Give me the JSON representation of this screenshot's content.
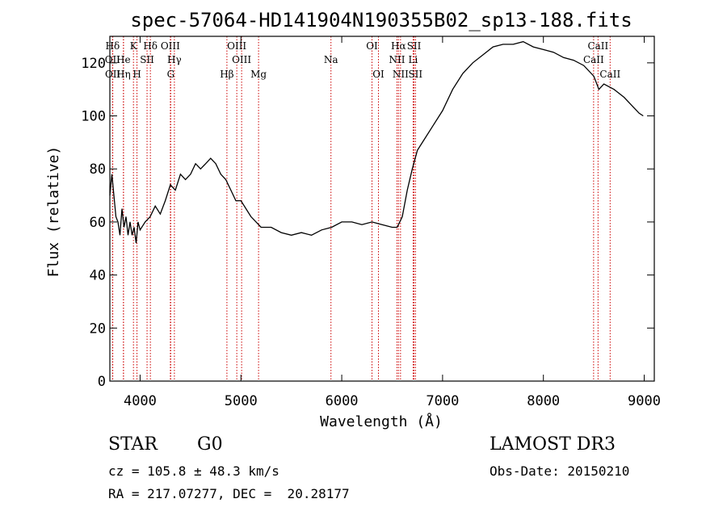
{
  "chart_data": {
    "type": "line",
    "title": "spec-57064-HD141904N190355B02_sp13-188.fits",
    "xlabel": "Wavelength (Å)",
    "ylabel": "Flux (relative)",
    "xlim": [
      3700,
      9100
    ],
    "ylim": [
      0,
      130
    ],
    "xticks": [
      4000,
      5000,
      6000,
      7000,
      8000,
      9000
    ],
    "yticks": [
      0,
      20,
      40,
      60,
      80,
      100,
      120
    ],
    "series": [
      {
        "name": "flux",
        "x": [
          3700,
          3720,
          3740,
          3760,
          3780,
          3800,
          3820,
          3840,
          3860,
          3880,
          3900,
          3920,
          3940,
          3960,
          3980,
          4000,
          4050,
          4100,
          4150,
          4200,
          4250,
          4300,
          4350,
          4400,
          4450,
          4500,
          4550,
          4600,
          4650,
          4700,
          4750,
          4800,
          4850,
          4900,
          4950,
          5000,
          5050,
          5100,
          5150,
          5200,
          5300,
          5400,
          5500,
          5600,
          5700,
          5800,
          5900,
          6000,
          6100,
          6200,
          6300,
          6400,
          6500,
          6550,
          6600,
          6650,
          6700,
          6750,
          6800,
          6900,
          7000,
          7100,
          7200,
          7300,
          7400,
          7500,
          7600,
          7700,
          7800,
          7900,
          8000,
          8100,
          8200,
          8300,
          8400,
          8500,
          8550,
          8600,
          8700,
          8800,
          8900,
          8950,
          8990
        ],
        "y": [
          70,
          78,
          70,
          62,
          60,
          55,
          65,
          58,
          62,
          55,
          60,
          55,
          58,
          52,
          60,
          57,
          60,
          62,
          66,
          63,
          68,
          74,
          72,
          78,
          76,
          78,
          82,
          80,
          82,
          84,
          82,
          78,
          76,
          72,
          68,
          68,
          65,
          62,
          60,
          58,
          58,
          56,
          55,
          56,
          55,
          57,
          58,
          60,
          60,
          59,
          60,
          59,
          58,
          58,
          62,
          72,
          80,
          87,
          90,
          96,
          102,
          110,
          116,
          120,
          123,
          126,
          127,
          127,
          128,
          126,
          125,
          124,
          122,
          121,
          119,
          115,
          110,
          112,
          110,
          107,
          103,
          101,
          100
        ]
      }
    ],
    "line_markers": [
      {
        "label": "Hδ",
        "x": 3727,
        "row": 1
      },
      {
        "label": "OII",
        "x": 3727,
        "row": 2
      },
      {
        "label": "OII",
        "x": 3729,
        "row": 3
      },
      {
        "label": "He",
        "x": 3835,
        "row": 2
      },
      {
        "label": "Hη",
        "x": 3835,
        "row": 3
      },
      {
        "label": "K",
        "x": 3934,
        "row": 1
      },
      {
        "label": "H",
        "x": 3969,
        "row": 3
      },
      {
        "label": "SII",
        "x": 4069,
        "row": 2
      },
      {
        "label": "Hδ",
        "x": 4102,
        "row": 1
      },
      {
        "label": "OIII",
        "x": 4300,
        "row": 1
      },
      {
        "label": "Hγ",
        "x": 4340,
        "row": 2
      },
      {
        "label": "G",
        "x": 4304,
        "row": 3
      },
      {
        "label": "Hβ",
        "x": 4861,
        "row": 3
      },
      {
        "label": "OIII",
        "x": 4959,
        "row": 1
      },
      {
        "label": "OIII",
        "x": 5007,
        "row": 2
      },
      {
        "label": "Mg",
        "x": 5175,
        "row": 3
      },
      {
        "label": "Na",
        "x": 5893,
        "row": 2
      },
      {
        "label": "OI",
        "x": 6300,
        "row": 1
      },
      {
        "label": "OI",
        "x": 6364,
        "row": 3
      },
      {
        "label": "Hα",
        "x": 6563,
        "row": 1
      },
      {
        "label": "NII",
        "x": 6548,
        "row": 2
      },
      {
        "label": "NII",
        "x": 6583,
        "row": 3
      },
      {
        "label": "SII",
        "x": 6717,
        "row": 1
      },
      {
        "label": "Li",
        "x": 6708,
        "row": 2
      },
      {
        "label": "SII",
        "x": 6731,
        "row": 3
      },
      {
        "label": "CaII",
        "x": 8542,
        "row": 1
      },
      {
        "label": "CaII",
        "x": 8498,
        "row": 2
      },
      {
        "label": "CaII",
        "x": 8662,
        "row": 3
      }
    ],
    "marker_color": "#cc0000",
    "line_color": "#000000"
  },
  "info": {
    "class": "STAR",
    "subclass": "G0",
    "survey": "LAMOST DR3",
    "cz": "cz = 105.8 ± 48.3 km/s",
    "obs_date": "Obs-Date: 20150210",
    "radec": "RA = 217.07277, DEC =  20.28177"
  }
}
